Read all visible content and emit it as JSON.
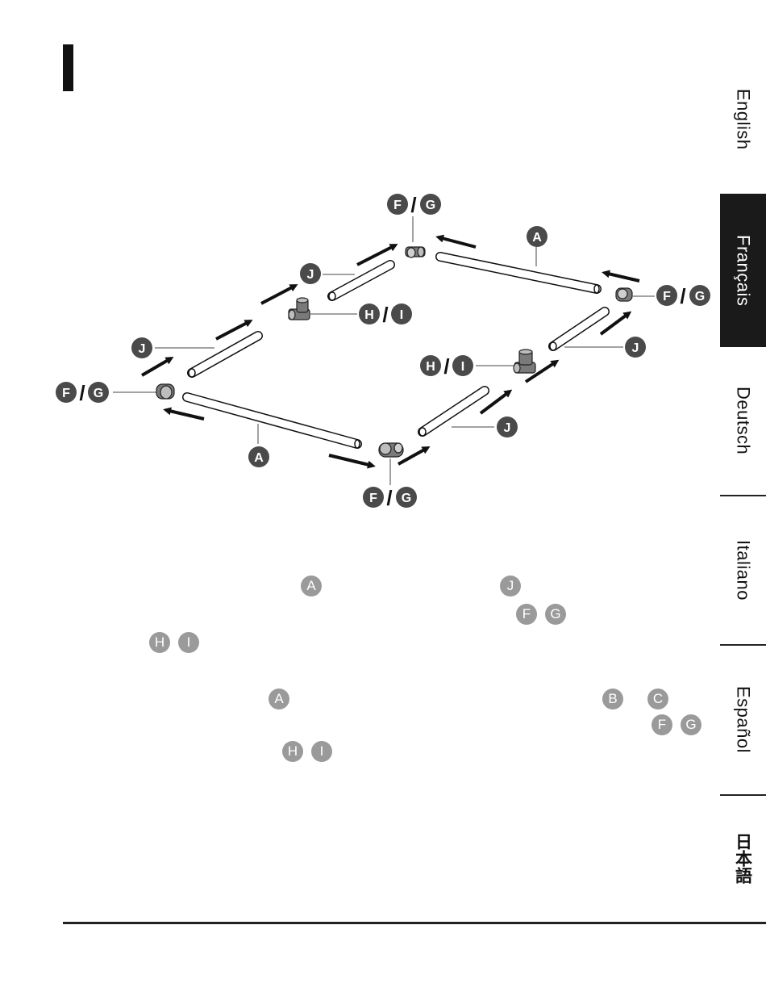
{
  "languages": [
    {
      "label": "English",
      "active": false
    },
    {
      "label": "Français",
      "active": true
    },
    {
      "label": "Deutsch",
      "active": false
    },
    {
      "label": "Italiano",
      "active": false
    },
    {
      "label": "Español",
      "active": false
    },
    {
      "label": "日本語",
      "active": false
    }
  ],
  "diagram": {
    "callouts": {
      "fg_top": {
        "a": "F",
        "slash": "/",
        "b": "G"
      },
      "a_top": {
        "a": "A"
      },
      "j_upper": {
        "a": "J"
      },
      "hi_upper": {
        "a": "H",
        "slash": "/",
        "b": "I"
      },
      "fg_right": {
        "a": "F",
        "slash": "/",
        "b": "G"
      },
      "j_left": {
        "a": "J"
      },
      "j_right_upper": {
        "a": "J"
      },
      "hi_right": {
        "a": "H",
        "slash": "/",
        "b": "I"
      },
      "fg_left": {
        "a": "F",
        "slash": "/",
        "b": "G"
      },
      "a_bottom": {
        "a": "A"
      },
      "j_right_lower": {
        "a": "J"
      },
      "fg_bottom": {
        "a": "F",
        "slash": "/",
        "b": "G"
      }
    }
  },
  "text_refs": {
    "p1": [
      "A",
      "J",
      "F",
      "G",
      "H",
      "I"
    ],
    "p2": [
      "A",
      "B",
      "C",
      "F",
      "G",
      "H",
      "I"
    ]
  },
  "colors": {
    "badge": "#4a4a4a",
    "inline_ref": "#9a9a9a",
    "fitting": "#7a7a7a",
    "active_tab": "#1a1a1a"
  }
}
